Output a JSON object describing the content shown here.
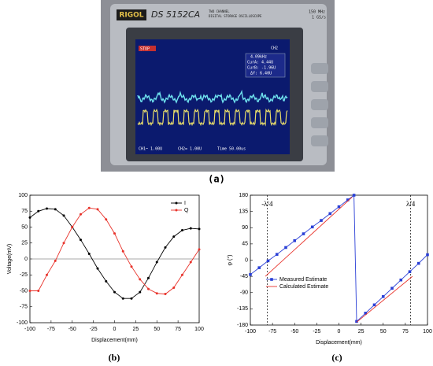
{
  "photo": {
    "panel_label": "(a)",
    "brand": "RIGOL",
    "model": "DS 5152CA",
    "line1": "TWO CHANNEL",
    "line2": "DIGITAL STORAGE OSCILLOSCOPE",
    "bandwidth": "150 MHz",
    "rate": "1 GS/s",
    "status": "STOP",
    "channel": "CH2",
    "freq": "4.09kHz",
    "cur_a": "CurA: 4.44U",
    "cur_b": "CurB: -1.96U",
    "delta": "ΔY: 6.40U",
    "ch1": "CH1~ 1.00U",
    "ch2": "CH2= 1.00U",
    "time": "Time 50.00us"
  },
  "chart_data": [
    {
      "type": "line",
      "panel_label": "(b)",
      "x_label": "Displacement(mm)",
      "y_label": "Voltage(mV)",
      "x": [
        -100,
        -90,
        -80,
        -70,
        -60,
        -50,
        -40,
        -30,
        -20,
        -10,
        0,
        10,
        20,
        30,
        40,
        50,
        60,
        70,
        80,
        90,
        100
      ],
      "series": [
        {
          "name": "I",
          "color": "#000000",
          "marker": "circle",
          "values": [
            65,
            75,
            79,
            78,
            68,
            50,
            30,
            8,
            -15,
            -35,
            -52,
            -62,
            -62,
            -52,
            -30,
            -5,
            18,
            35,
            45,
            48,
            47
          ]
        },
        {
          "name": "Q",
          "color": "#e8322a",
          "marker": "circle",
          "values": [
            -50,
            -50,
            -25,
            -3,
            25,
            50,
            70,
            80,
            78,
            62,
            40,
            12,
            -12,
            -32,
            -47,
            -54,
            -55,
            -45,
            -25,
            -5,
            15
          ]
        }
      ],
      "xlim": [
        -100,
        100
      ],
      "xticks": [
        -100,
        -75,
        -50,
        -25,
        0,
        25,
        50,
        75,
        100
      ],
      "ylim": [
        -100,
        100
      ],
      "yticks": [
        -100,
        -75,
        -50,
        -25,
        0,
        25,
        50,
        75,
        100
      ],
      "legend": "upper right"
    },
    {
      "type": "line",
      "panel_label": "(c)",
      "x_label": "Displacement(mm)",
      "y_label": "φ (°)",
      "series": [
        {
          "name": "Measured Estimate",
          "color": "#2a3fd6",
          "marker": "square",
          "x": [
            -100,
            -90,
            -80,
            -70,
            -60,
            -50,
            -40,
            -30,
            -20,
            -10,
            0,
            10,
            17,
            20,
            30,
            40,
            50,
            60,
            70,
            80,
            90,
            100
          ],
          "values": [
            -40,
            -21,
            -2,
            16,
            35,
            54,
            73,
            92,
            110,
            129,
            148,
            167,
            180,
            -170,
            -147,
            -124,
            -101,
            -78,
            -55,
            -32,
            -9,
            15
          ]
        },
        {
          "name": "Calculated Estimate",
          "color": "#e8322a",
          "marker": "none",
          "x": [
            -83,
            15,
            17,
            20,
            83
          ],
          "values": [
            -45,
            175,
            null,
            -172,
            -45
          ]
        }
      ],
      "annotations": [
        {
          "text": "-λ/4",
          "x": -81
        },
        {
          "text": "λ/4",
          "x": 81
        }
      ],
      "xlim": [
        -100,
        100
      ],
      "xticks": [
        -100,
        -75,
        -50,
        -25,
        0,
        25,
        50,
        75,
        100
      ],
      "ylim": [
        -180,
        180
      ],
      "yticks": [
        -180,
        -135,
        -90,
        -45,
        0,
        45,
        90,
        135,
        180
      ],
      "legend": "lower left"
    }
  ]
}
